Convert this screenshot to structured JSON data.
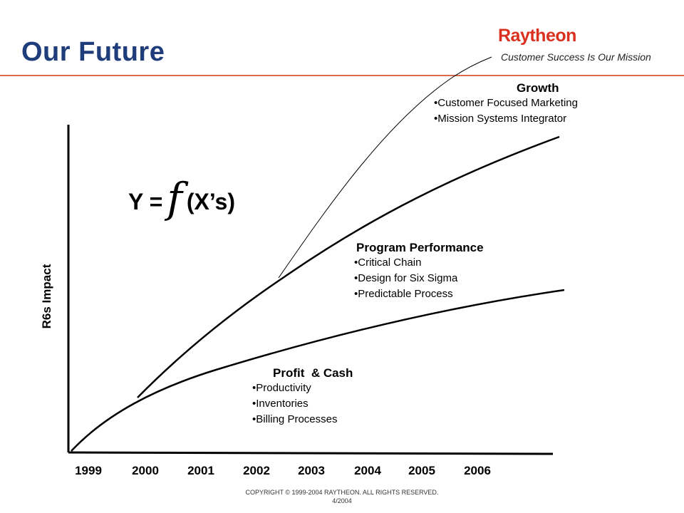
{
  "header": {
    "title": "Our Future",
    "logo": "Raytheon",
    "tagline": "Customer Success Is Our Mission"
  },
  "diagram": {
    "y_axis_label": "R6s Impact",
    "formula": {
      "left": "Y =",
      "f": "f",
      "right": "(X’s)"
    },
    "x_axis_years": [
      "1999",
      "2000",
      "2001",
      "2002",
      "2003",
      "2004",
      "2005",
      "2006"
    ],
    "growth": {
      "heading": "Growth",
      "items": [
        "•Customer Focused Marketing",
        "•Mission Systems Integrator"
      ]
    },
    "program_performance": {
      "heading": "Program Performance",
      "items": [
        "•Critical Chain",
        "•Design for Six Sigma",
        "•Predictable Process"
      ]
    },
    "profit_cash": {
      "heading": "Profit  & Cash",
      "items": [
        "•Productivity",
        "•Inventories",
        "•Billing Processes"
      ]
    }
  },
  "footer": {
    "copyright": "COPYRIGHT  © 1999-2004 RAYTHEON. ALL RIGHTS RESERVED.",
    "date": "4/2004"
  },
  "colors": {
    "title": "#1f3d7a",
    "logo": "#d9301f",
    "rule": "#d96b4a"
  }
}
